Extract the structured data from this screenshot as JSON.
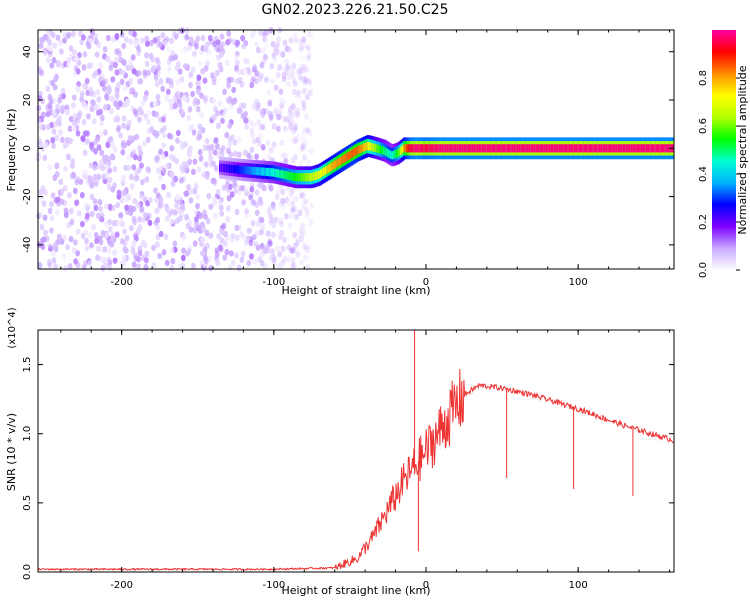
{
  "title": "GN02.2023.226.21.50.C25",
  "chart_data": [
    {
      "type": "heatmap",
      "name": "spectrogram",
      "xlabel": "Height of straight line (km)",
      "ylabel": "Frequency (Hz)",
      "xlim": [
        -255,
        163
      ],
      "ylim": [
        -50,
        49
      ],
      "xticks": [
        -200,
        -100,
        0,
        100
      ],
      "yticks": [
        -40,
        -20,
        0,
        20,
        40
      ],
      "colorbar": {
        "label": "Normalized spectral amplitude",
        "range": [
          0,
          1
        ],
        "ticks": [
          "0.0",
          "0.2",
          "0.4",
          "0.6",
          "0.8"
        ],
        "colormap": [
          "#ffffff",
          "#c9a8ff",
          "#7f00ff",
          "#0000ff",
          "#00b4ff",
          "#00ffd0",
          "#00ff00",
          "#b4ff00",
          "#ffff00",
          "#ff8c00",
          "#ff0000",
          "#ff00a0"
        ]
      },
      "noise_region_km": [
        -255,
        -75
      ],
      "signal_ridge": {
        "x_km": [
          -135,
          -120,
          -100,
          -85,
          -75,
          -70,
          -60,
          -50,
          -45,
          -38,
          -32,
          -27,
          -22,
          -18,
          -14,
          -10,
          -5,
          0,
          10,
          30,
          60,
          100,
          130,
          163
        ],
        "freq_hz": [
          -8,
          -9,
          -10,
          -12,
          -12,
          -11,
          -7,
          -3,
          -1,
          1,
          0,
          -1,
          -3,
          -2,
          0,
          0,
          0,
          0,
          0,
          0,
          0,
          0,
          0,
          0
        ],
        "peak_amplitude": [
          0.2,
          0.3,
          0.45,
          0.55,
          0.65,
          0.7,
          0.8,
          0.85,
          0.85,
          0.75,
          0.6,
          0.5,
          0.45,
          0.55,
          0.8,
          0.95,
          0.98,
          0.95,
          0.98,
          0.98,
          0.98,
          0.98,
          0.98,
          0.98
        ]
      },
      "grid": false
    },
    {
      "type": "line",
      "name": "snr",
      "xlabel": "Height of straight line (km)",
      "ylabel": "SNR (10 * v/v)",
      "y_multiplier": "(x10^4)",
      "xlim": [
        -255,
        163
      ],
      "ylim": [
        0,
        1.75
      ],
      "xticks": [
        -200,
        -100,
        0,
        100
      ],
      "yticks": [
        "0.0",
        "0.5",
        "1.0",
        "1.5"
      ],
      "color": "#ee3333",
      "envelope": {
        "x_km": [
          -255,
          -100,
          -60,
          -45,
          -35,
          -25,
          -15,
          -5,
          5,
          15,
          25,
          35,
          50,
          70,
          100,
          130,
          163
        ],
        "snr_x1e4": [
          0.02,
          0.02,
          0.03,
          0.1,
          0.25,
          0.45,
          0.65,
          0.8,
          0.95,
          1.12,
          1.28,
          1.35,
          1.33,
          1.28,
          1.18,
          1.06,
          0.95
        ]
      },
      "spikes": [
        {
          "x_km": -7.5,
          "snr_x1e4": 1.75
        },
        {
          "x_km": -5,
          "snr_x1e4": 0.15
        },
        {
          "x_km": 53,
          "snr_x1e4": 0.68
        },
        {
          "x_km": 97,
          "snr_x1e4": 0.6
        },
        {
          "x_km": 136,
          "snr_x1e4": 0.55
        }
      ],
      "grid": false
    }
  ]
}
